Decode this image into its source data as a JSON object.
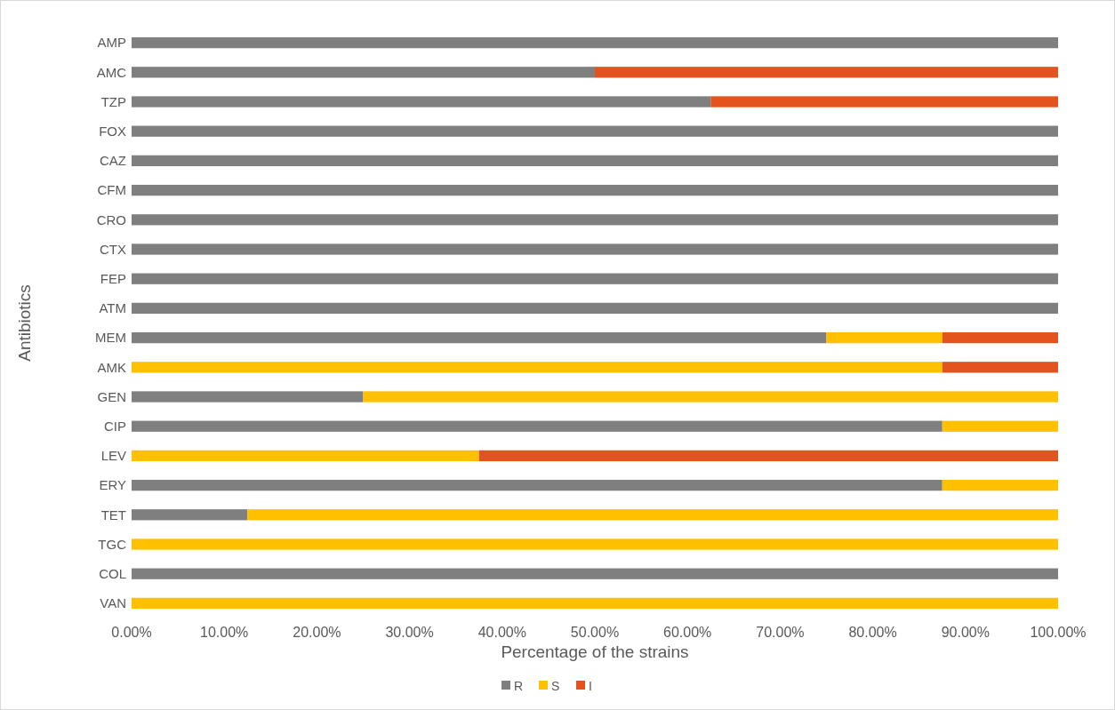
{
  "chart_data": {
    "type": "bar",
    "orientation": "horizontal",
    "stacked": true,
    "xlabel": "Percentage of the strains",
    "ylabel": "Antibiotics",
    "categories": [
      "AMP",
      "AMC",
      "TZP",
      "FOX",
      "CAZ",
      "CFM",
      "CRO",
      "CTX",
      "FEP",
      "ATM",
      "MEM",
      "AMK",
      "GEN",
      "CIP",
      "LEV",
      "ERY",
      "TET",
      "TGC",
      "COL",
      "VAN"
    ],
    "series": [
      {
        "name": "R",
        "color": "#7f7f7f",
        "values": [
          100,
          50,
          62.5,
          100,
          100,
          100,
          100,
          100,
          100,
          100,
          75,
          0,
          25,
          87.5,
          0,
          87.5,
          12.5,
          0,
          100,
          0
        ]
      },
      {
        "name": "S",
        "color": "#ffc000",
        "values": [
          0,
          0,
          0,
          0,
          0,
          0,
          0,
          0,
          0,
          0,
          12.5,
          87.5,
          75,
          12.5,
          37.5,
          12.5,
          87.5,
          100,
          0,
          100
        ]
      },
      {
        "name": "I",
        "color": "#e2531e",
        "values": [
          0,
          50,
          37.5,
          0,
          0,
          0,
          0,
          0,
          0,
          0,
          12.5,
          12.5,
          0,
          0,
          62.5,
          0,
          0,
          0,
          0,
          0
        ]
      }
    ],
    "xlim": [
      0,
      100
    ],
    "xticks": [
      {
        "value": 0,
        "label": "0.00%"
      },
      {
        "value": 10,
        "label": "10.00%"
      },
      {
        "value": 20,
        "label": "20.00%"
      },
      {
        "value": 30,
        "label": "30.00%"
      },
      {
        "value": 40,
        "label": "40.00%"
      },
      {
        "value": 50,
        "label": "50.00%"
      },
      {
        "value": 60,
        "label": "60.00%"
      },
      {
        "value": 70,
        "label": "70.00%"
      },
      {
        "value": 80,
        "label": "80.00%"
      },
      {
        "value": 90,
        "label": "90.00%"
      },
      {
        "value": 100,
        "label": "100.00%"
      }
    ],
    "grid": false,
    "legend": "bottom"
  }
}
